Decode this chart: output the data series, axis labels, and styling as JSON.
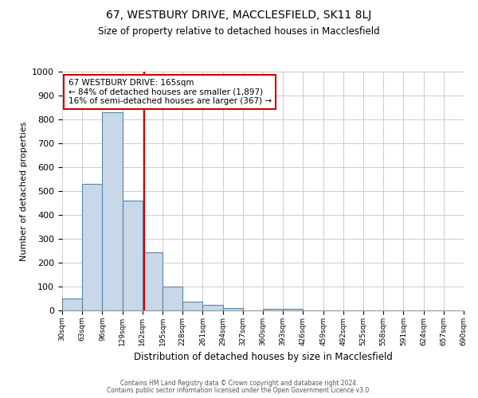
{
  "title": "67, WESTBURY DRIVE, MACCLESFIELD, SK11 8LJ",
  "subtitle": "Size of property relative to detached houses in Macclesfield",
  "xlabel": "Distribution of detached houses by size in Macclesfield",
  "ylabel": "Number of detached properties",
  "footnote1": "Contains HM Land Registry data © Crown copyright and database right 2024.",
  "footnote2": "Contains public sector information licensed under the Open Government Licence v3.0.",
  "bin_edges": [
    30,
    63,
    96,
    129,
    162,
    195,
    228,
    261,
    294,
    327,
    360,
    393,
    426,
    459,
    492,
    525,
    558,
    591,
    624,
    657,
    690
  ],
  "bar_heights": [
    50,
    530,
    830,
    460,
    245,
    100,
    37,
    22,
    10,
    0,
    8,
    8,
    0,
    0,
    0,
    0,
    0,
    0,
    0,
    0
  ],
  "property_size": 165,
  "bar_color": "#c8d8e8",
  "bar_edge_color": "#5588aa",
  "vline_color": "#cc0000",
  "annotation_box_color": "#cc0000",
  "annotation_text_line1": "67 WESTBURY DRIVE: 165sqm",
  "annotation_text_line2": "← 84% of detached houses are smaller (1,897)",
  "annotation_text_line3": "16% of semi-detached houses are larger (367) →",
  "ylim": [
    0,
    1000
  ],
  "xlim": [
    30,
    690
  ],
  "background_color": "#ffffff",
  "grid_color": "#cccccc"
}
